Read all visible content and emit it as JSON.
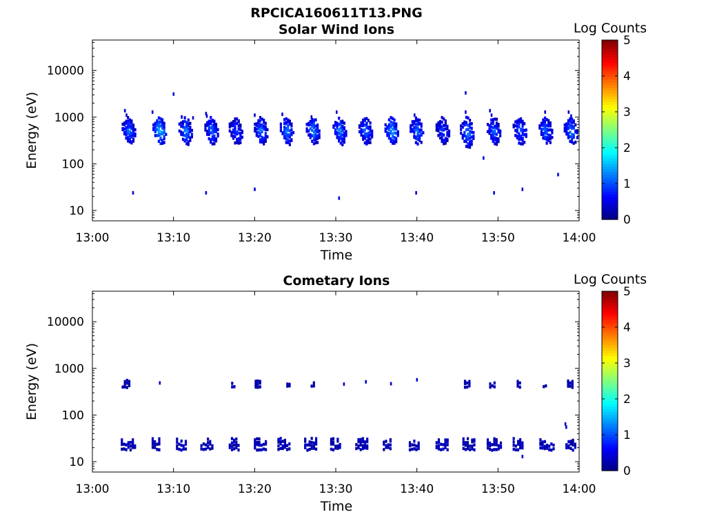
{
  "figure_title": "RPCICA160611T13.PNG",
  "chart_data": [
    {
      "type": "heatmap",
      "title": "Solar Wind Ions",
      "xlabel": "Time",
      "ylabel": "Energy (eV)",
      "x_ticks": [
        "13:00",
        "13:10",
        "13:20",
        "13:30",
        "13:40",
        "13:50",
        "14:00"
      ],
      "y_ticks": [
        "10",
        "100",
        "1000",
        "10000"
      ],
      "y_scale": "log",
      "x_range_min": [
        0,
        60
      ],
      "y_range": [
        6,
        45000
      ],
      "colorbar": {
        "label": "Log Counts",
        "ticks": [
          "0",
          "1",
          "2",
          "3",
          "4",
          "5"
        ],
        "range": [
          0,
          5
        ],
        "colormap": "jet"
      },
      "blobs": [
        {
          "t": 4.4,
          "e": 550,
          "spread": 0.25,
          "level": 1.2
        },
        {
          "t": 8.2,
          "e": 550,
          "spread": 0.25,
          "level": 1.6
        },
        {
          "t": 11.4,
          "e": 550,
          "spread": 0.25,
          "level": 1.3
        },
        {
          "t": 14.6,
          "e": 550,
          "spread": 0.25,
          "level": 1.2
        },
        {
          "t": 17.6,
          "e": 550,
          "spread": 0.25,
          "level": 1.0
        },
        {
          "t": 20.7,
          "e": 550,
          "spread": 0.25,
          "level": 1.2
        },
        {
          "t": 23.9,
          "e": 550,
          "spread": 0.25,
          "level": 1.3
        },
        {
          "t": 27.1,
          "e": 550,
          "spread": 0.25,
          "level": 1.4
        },
        {
          "t": 30.4,
          "e": 550,
          "spread": 0.25,
          "level": 1.3
        },
        {
          "t": 33.6,
          "e": 550,
          "spread": 0.25,
          "level": 1.2
        },
        {
          "t": 36.8,
          "e": 550,
          "spread": 0.25,
          "level": 1.5
        },
        {
          "t": 39.9,
          "e": 550,
          "spread": 0.25,
          "level": 1.3
        },
        {
          "t": 43.1,
          "e": 550,
          "spread": 0.25,
          "level": 0.9
        },
        {
          "t": 46.1,
          "e": 500,
          "spread": 0.3,
          "level": 1.3
        },
        {
          "t": 49.4,
          "e": 550,
          "spread": 0.25,
          "level": 1.1
        },
        {
          "t": 52.6,
          "e": 550,
          "spread": 0.25,
          "level": 1.1
        },
        {
          "t": 55.8,
          "e": 550,
          "spread": 0.25,
          "level": 1.2
        },
        {
          "t": 58.9,
          "e": 550,
          "spread": 0.25,
          "level": 1.3
        }
      ],
      "sparse": [
        {
          "t": 3.9,
          "e": 1500
        },
        {
          "t": 4.1,
          "e": 1200
        },
        {
          "t": 4.9,
          "e": 26
        },
        {
          "t": 7.3,
          "e": 1400
        },
        {
          "t": 9.9,
          "e": 3400
        },
        {
          "t": 10.9,
          "e": 1100
        },
        {
          "t": 12.3,
          "e": 1050
        },
        {
          "t": 13.9,
          "e": 1300
        },
        {
          "t": 14.0,
          "e": 1150
        },
        {
          "t": 13.9,
          "e": 26
        },
        {
          "t": 19.9,
          "e": 1200
        },
        {
          "t": 19.9,
          "e": 31
        },
        {
          "t": 23.3,
          "e": 1250
        },
        {
          "t": 26.9,
          "e": 1100
        },
        {
          "t": 30.0,
          "e": 1400
        },
        {
          "t": 30.3,
          "e": 20
        },
        {
          "t": 39.6,
          "e": 1200
        },
        {
          "t": 39.8,
          "e": 26
        },
        {
          "t": 45.9,
          "e": 3600
        },
        {
          "t": 45.9,
          "e": 1400
        },
        {
          "t": 48.1,
          "e": 145
        },
        {
          "t": 48.9,
          "e": 1500
        },
        {
          "t": 49.1,
          "e": 1200
        },
        {
          "t": 49.4,
          "e": 26
        },
        {
          "t": 52.9,
          "e": 31
        },
        {
          "t": 55.7,
          "e": 1400
        },
        {
          "t": 57.3,
          "e": 64
        },
        {
          "t": 58.6,
          "e": 1400
        },
        {
          "t": 58.9,
          "e": 1150
        }
      ]
    },
    {
      "type": "heatmap",
      "title": "Cometary Ions",
      "xlabel": "Time",
      "ylabel": "Energy (eV)",
      "x_ticks": [
        "13:00",
        "13:10",
        "13:20",
        "13:30",
        "13:40",
        "13:50",
        "14:00"
      ],
      "y_ticks": [
        "10",
        "100",
        "1000",
        "10000"
      ],
      "y_scale": "log",
      "x_range_min": [
        0,
        60
      ],
      "y_range": [
        6,
        45000
      ],
      "colorbar": {
        "label": "Log Counts",
        "ticks": [
          "0",
          "1",
          "2",
          "3",
          "4",
          "5"
        ],
        "range": [
          0,
          5
        ],
        "colormap": "jet"
      },
      "low_bands": [
        {
          "t0": 3.5,
          "t1": 5.3
        },
        {
          "t0": 7.3,
          "t1": 8.3
        },
        {
          "t0": 10.3,
          "t1": 11.5
        },
        {
          "t0": 13.3,
          "t1": 14.8
        },
        {
          "t0": 16.8,
          "t1": 17.9
        },
        {
          "t0": 19.9,
          "t1": 21.3
        },
        {
          "t0": 22.8,
          "t1": 24.3
        },
        {
          "t0": 26.1,
          "t1": 27.5
        },
        {
          "t0": 29.3,
          "t1": 30.4
        },
        {
          "t0": 32.4,
          "t1": 33.8
        },
        {
          "t0": 35.8,
          "t1": 36.7
        },
        {
          "t0": 39.0,
          "t1": 40.2
        },
        {
          "t0": 42.3,
          "t1": 43.8
        },
        {
          "t0": 45.6,
          "t1": 47.2
        },
        {
          "t0": 48.6,
          "t1": 50.3
        },
        {
          "t0": 51.8,
          "t1": 53.0
        },
        {
          "t0": 55.1,
          "t1": 56.9
        },
        {
          "t0": 58.3,
          "t1": 59.5
        }
      ],
      "mid_bands": [
        {
          "t0": 3.6,
          "t1": 4.6
        },
        {
          "t0": 17.1,
          "t1": 17.6
        },
        {
          "t0": 20.0,
          "t1": 20.7
        },
        {
          "t0": 23.9,
          "t1": 24.2
        },
        {
          "t0": 26.9,
          "t1": 27.3
        },
        {
          "t0": 45.8,
          "t1": 46.6
        },
        {
          "t0": 48.9,
          "t1": 49.5
        },
        {
          "t0": 52.3,
          "t1": 52.8
        },
        {
          "t0": 55.5,
          "t1": 55.9
        },
        {
          "t0": 58.5,
          "t1": 59.2
        }
      ],
      "sparse": [
        {
          "t": 8.2,
          "e": 530
        },
        {
          "t": 30.9,
          "e": 500
        },
        {
          "t": 33.6,
          "e": 560
        },
        {
          "t": 36.7,
          "e": 510
        },
        {
          "t": 39.9,
          "e": 620
        },
        {
          "t": 58.2,
          "e": 70
        },
        {
          "t": 58.3,
          "e": 60
        },
        {
          "t": 52.9,
          "e": 14
        }
      ]
    }
  ]
}
